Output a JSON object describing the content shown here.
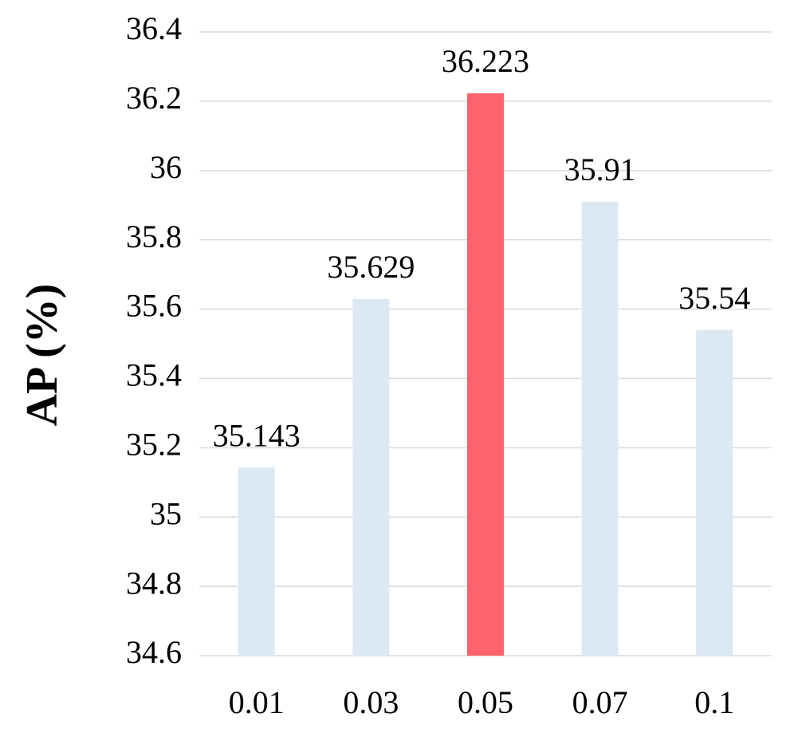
{
  "chart_data": {
    "type": "bar",
    "y_label": "AP (%)",
    "categories": [
      "0.01",
      "0.03",
      "0.05",
      "0.07",
      "0.1"
    ],
    "values": [
      35.143,
      35.629,
      36.223,
      35.91,
      35.54
    ],
    "colors": [
      "#dde8f5",
      "#dde8f5",
      "#fe636c",
      "#dde8f5",
      "#dde8f5"
    ],
    "ylim": [
      34.6,
      36.4
    ],
    "yticks": [
      34.6,
      34.8,
      35,
      35.2,
      35.4,
      35.6,
      35.8,
      36,
      36.2,
      36.4
    ],
    "grid": true
  }
}
